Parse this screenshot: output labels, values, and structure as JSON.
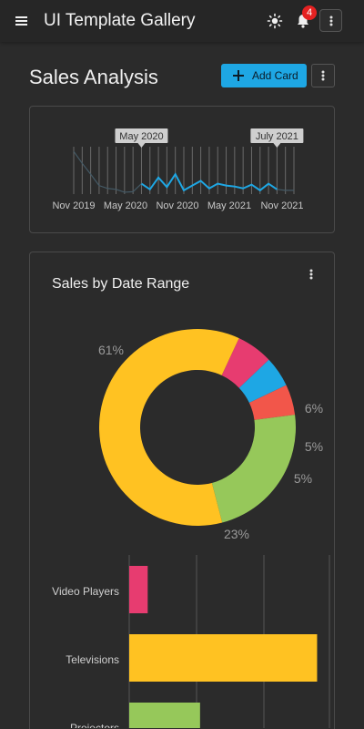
{
  "header": {
    "title": "UI Template Gallery",
    "notification_count": "4",
    "icons": [
      "menu-icon",
      "sun-icon",
      "bell-icon",
      "more-vertical-icon"
    ]
  },
  "page": {
    "title": "Sales Analysis",
    "add_card_label": "Add Card"
  },
  "range_selector": {
    "start_label": "May 2020",
    "end_label": "July 2021",
    "tick_labels": [
      "Nov 2019",
      "May 2020",
      "Nov 2020",
      "May 2021",
      "Nov 2021"
    ]
  },
  "donut_card": {
    "title": "Sales by Date Range"
  },
  "chart_data": [
    {
      "type": "line",
      "x_tick_labels": [
        "Nov 2019",
        "May 2020",
        "Nov 2020",
        "May 2021",
        "Nov 2021"
      ],
      "selected_range": [
        "May 2020",
        "July 2021"
      ],
      "values": [
        0.9,
        0.65,
        0.42,
        0.18,
        0.12,
        0.1,
        0.04,
        0.05,
        0.22,
        0.1,
        0.35,
        0.15,
        0.42,
        0.08,
        0.18,
        0.28,
        0.12,
        0.22,
        0.18,
        0.16,
        0.12,
        0.2,
        0.08,
        0.22,
        0.1,
        0.08,
        0.08
      ],
      "selected_index_range": [
        8,
        24
      ],
      "series_color": "#1ea7e4"
    },
    {
      "type": "pie",
      "donut": true,
      "labels": [
        "6%",
        "5%",
        "5%",
        "23%",
        "61%"
      ],
      "values": [
        6,
        5,
        5,
        23,
        61
      ],
      "colors": [
        "#e73c70",
        "#1ea7e4",
        "#f2564a",
        "#96c85a",
        "#ffc222"
      ]
    },
    {
      "type": "bar",
      "orientation": "horizontal",
      "categories": [
        "Video Players",
        "Televisions",
        "Projectors"
      ],
      "values": [
        6,
        61,
        23
      ],
      "colors": [
        "#e73c70",
        "#ffc222",
        "#96c85a"
      ],
      "xlim": [
        0,
        65
      ]
    }
  ]
}
